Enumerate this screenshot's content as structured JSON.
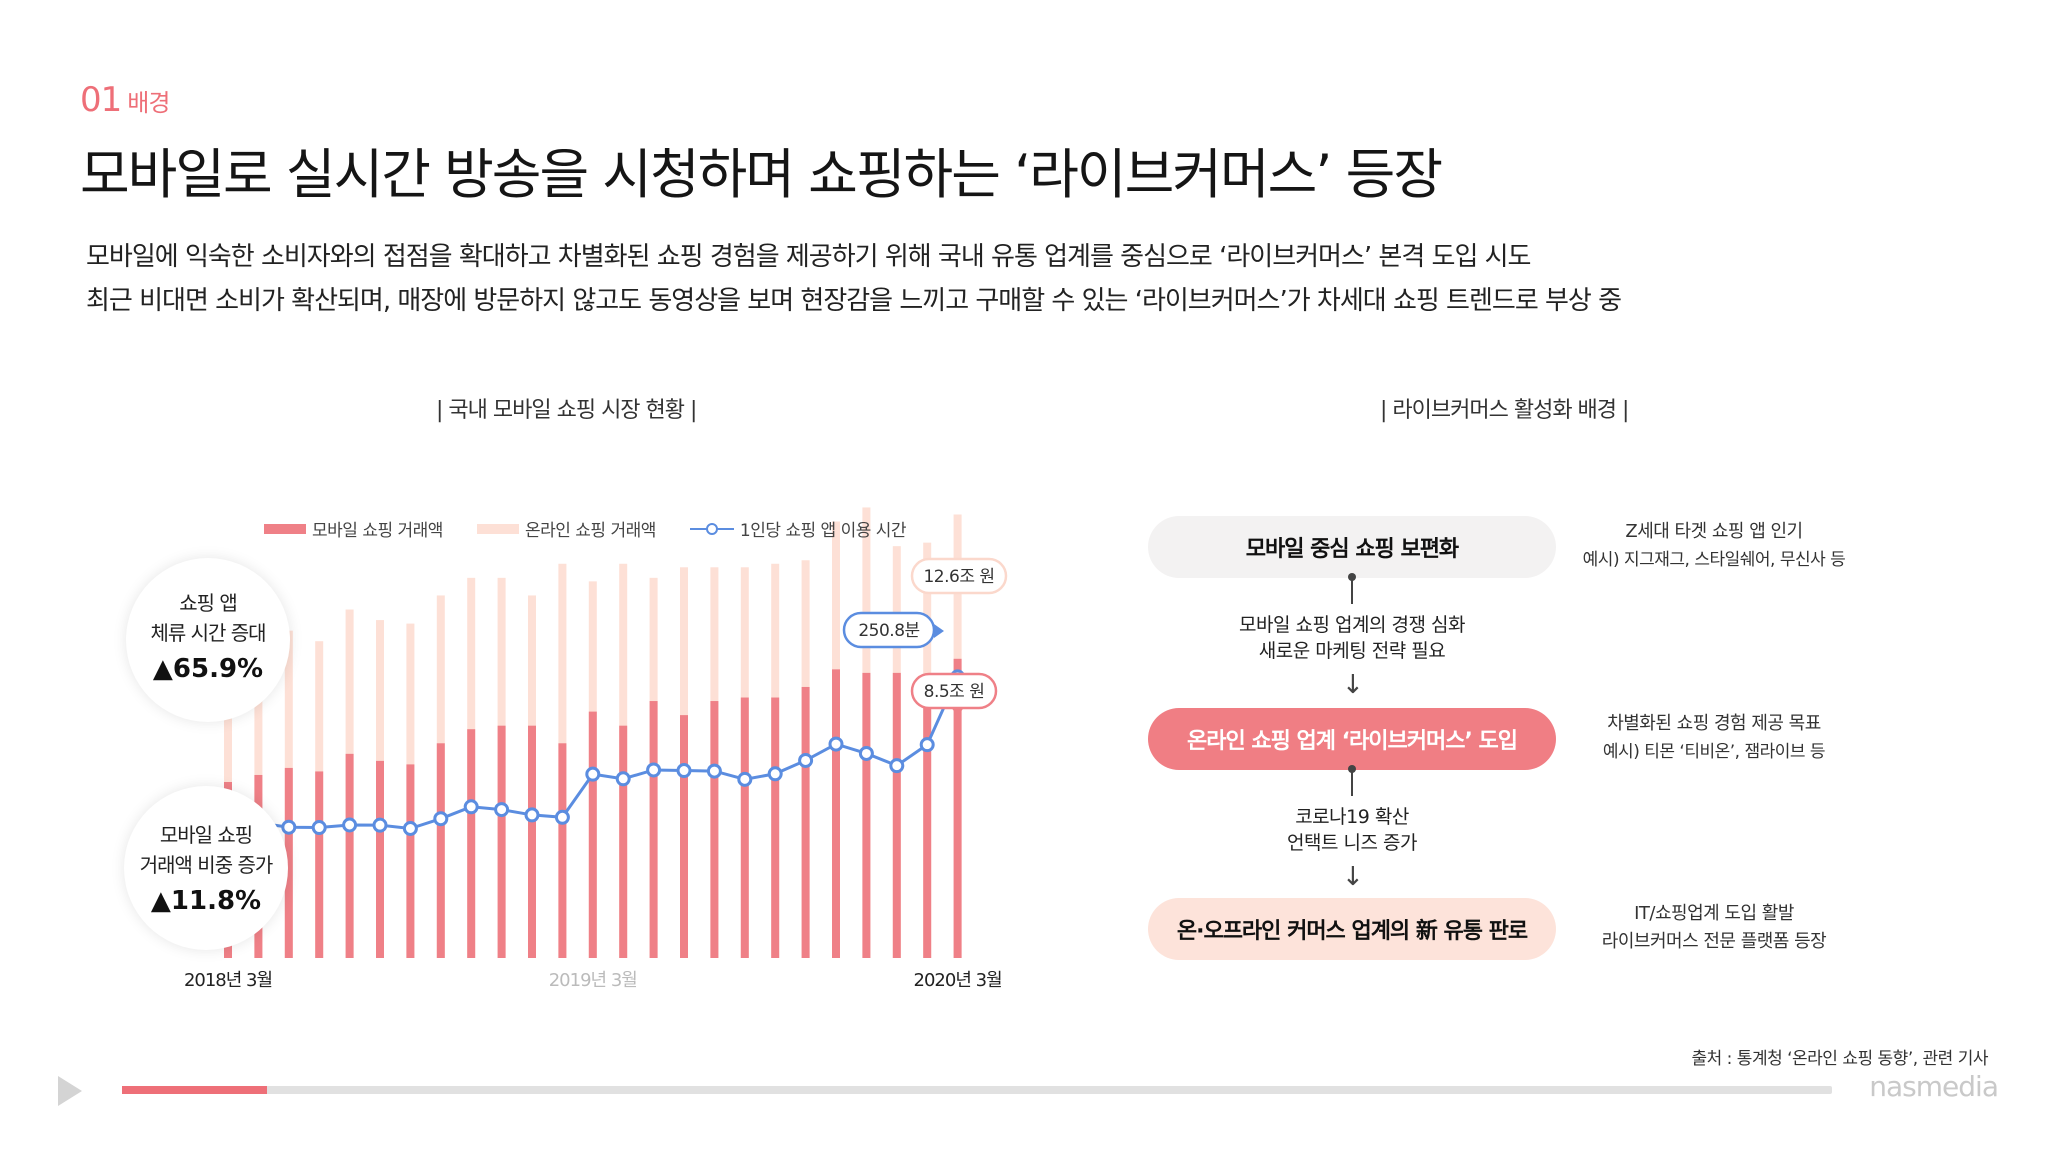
{
  "section": {
    "number": "01",
    "label": "배경"
  },
  "title": "모바일로 실시간 방송을 시청하며 쇼핑하는 ‘라이브커머스’ 등장",
  "description": [
    "모바일에 익숙한 소비자와의 접점을 확대하고 차별화된 쇼핑 경험을 제공하기 위해 국내 유통 업계를 중심으로 ‘라이브커머스’ 본격 도입 시도",
    "최근 비대면 소비가 확산되며, 매장에 방문하지 않고도 동영상을 보며 현장감을 느끼고 구매할 수 있는 ‘라이브커머스’가 차세대 쇼핑 트렌드로 부상 중"
  ],
  "left_heading": "| 국내 모바일 쇼핑 시장 현황 |",
  "right_heading": "| 라이브커머스 활성화 배경 |",
  "stats": [
    {
      "label1": "쇼핑 앱",
      "label2": "체류 시간 증대",
      "value": "▲65.9%"
    },
    {
      "label1": "모바일 쇼핑",
      "label2": "거래액 비중 증가",
      "value": "▲11.8%"
    }
  ],
  "chart_data": {
    "type": "bar",
    "legend": [
      "모바일 쇼핑 거래액",
      "온라인 쇼핑 거래액",
      "1인당 쇼핑 앱 이용 시간"
    ],
    "x_labels": [
      "2018년 3월",
      "2019년 3월",
      "2020년 3월"
    ],
    "series": [
      {
        "name": "온라인 쇼핑 거래액",
        "values": [
          8.9,
          9.0,
          9.3,
          9.0,
          9.9,
          9.6,
          9.5,
          10.3,
          10.8,
          10.8,
          10.3,
          11.2,
          10.7,
          11.2,
          10.8,
          11.1,
          11.1,
          11.1,
          11.2,
          11.3,
          12.4,
          12.8,
          11.7,
          11.8,
          12.6
        ]
      },
      {
        "name": "모바일 쇼핑 거래액",
        "values": [
          5.0,
          5.2,
          5.4,
          5.3,
          5.8,
          5.6,
          5.5,
          6.1,
          6.5,
          6.6,
          6.6,
          6.1,
          7.0,
          6.6,
          7.3,
          6.9,
          7.3,
          7.4,
          7.4,
          7.7,
          8.2,
          8.1,
          8.1,
          8.0,
          8.5
        ]
      },
      {
        "name": "1인당 쇼핑 앱 이용 시간",
        "values": [
          151.3,
          146.5,
          143.4,
          143.2,
          145.0,
          144.9,
          142.5,
          149.5,
          158.0,
          156.0,
          152.2,
          150.5,
          181.3,
          178.0,
          184.3,
          183.9,
          183.5,
          177.6,
          181.6,
          191.1,
          202.8,
          196.1,
          187.4,
          202.4,
          250.8
        ]
      }
    ],
    "annotations": [
      "12.6조 원",
      "250.8분",
      "8.5조 원"
    ]
  },
  "flow": {
    "box1": "모바일 중심 쇼핑 보편화",
    "step1": [
      "모바일 쇼핑 업계의 경쟁 심화",
      "새로운 마케팅 전략 필요"
    ],
    "box2": "온라인 쇼핑 업계 ‘라이브커머스’ 도입",
    "step2": [
      "코로나19 확산",
      "언택트 니즈 증가"
    ],
    "box3": "온·오프라인 커머스 업계의 新 유통 판로"
  },
  "notes": [
    {
      "line1": "Z세대 타겟 쇼핑 앱 인기",
      "line2": "예시) 지그재그, 스타일쉐어, 무신사 등"
    },
    {
      "line1": "차별화된 쇼핑 경험 제공 목표",
      "line2": "예시) 티몬 ‘티비온’, 잼라이브 등"
    },
    {
      "line1": "IT/쇼핑업계 도입 활발",
      "line2": "라이브커머스 전문 플랫폼 등장"
    }
  ],
  "source": "출처 : 통계청 ‘온라인 쇼핑 동향’, 관련 기사",
  "brand": "nasmedia",
  "progress": 0.085,
  "colors": {
    "accent": "#ee6f78",
    "mobile": "#ef8087",
    "online": "#fde0d6",
    "line": "#5b8de0"
  }
}
